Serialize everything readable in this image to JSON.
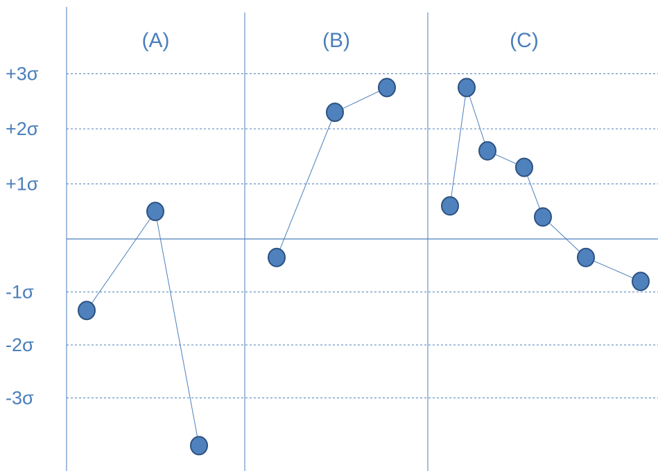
{
  "chart_data": {
    "type": "scatter",
    "y_tick_labels": [
      {
        "value": 3,
        "label": "+3σ"
      },
      {
        "value": 2,
        "label": "+2σ"
      },
      {
        "value": 1,
        "label": "+1σ"
      },
      {
        "value": -1,
        "label": "-1σ"
      },
      {
        "value": -2,
        "label": "-2σ"
      },
      {
        "value": -3,
        "label": "-3σ"
      }
    ],
    "ylim": [
      -4,
      3.5
    ],
    "grid": true,
    "panels": [
      {
        "label": "(A)",
        "points": [
          -1.35,
          0.5,
          -3.9
        ]
      },
      {
        "label": "(B)",
        "points": [
          -0.35,
          2.3,
          2.75
        ]
      },
      {
        "label": "(C)",
        "points": [
          0.6,
          2.75,
          1.6,
          1.3,
          0.4,
          -0.35,
          -0.8
        ]
      }
    ]
  }
}
